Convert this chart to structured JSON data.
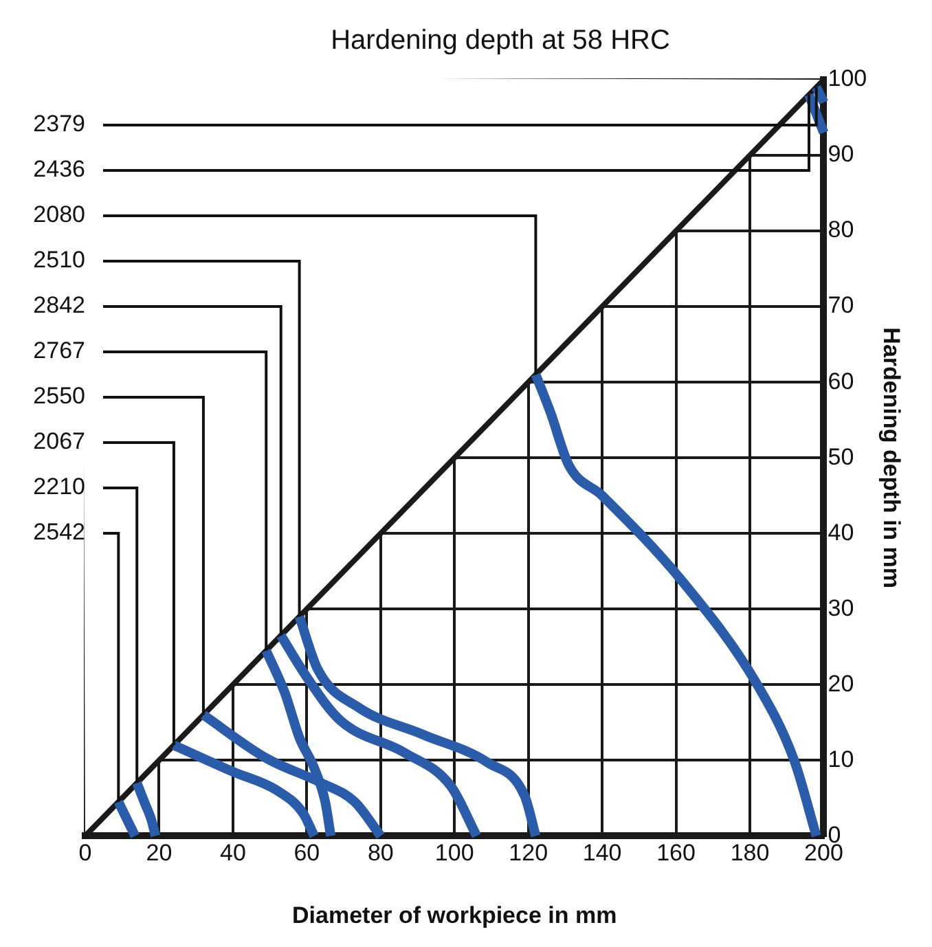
{
  "chart_data": {
    "type": "line",
    "title": "Hardening depth at 58 HRC",
    "xlabel": "Diameter of workpiece in mm",
    "ylabel": "Hardening depth in mm",
    "xlim": [
      0,
      200
    ],
    "xticks": [
      0,
      20,
      40,
      60,
      80,
      100,
      120,
      140,
      160,
      180,
      200
    ],
    "ylim": [
      0,
      100
    ],
    "yticks": [
      0,
      10,
      20,
      30,
      40,
      50,
      60,
      70,
      80,
      90,
      100
    ],
    "grid": true,
    "marker": "none",
    "series": [
      {
        "type": "line",
        "color": "#1a1a1a",
        "x": [
          0,
          200
        ],
        "values": [
          0,
          100
        ]
      },
      {
        "name": "2379",
        "color": "#2a5caa",
        "x": [
          198,
          200
        ],
        "values": [
          99,
          97
        ]
      },
      {
        "name": "2436",
        "color": "#2a5caa",
        "x": [
          196,
          200
        ],
        "values": [
          98,
          93
        ]
      },
      {
        "name": "2080",
        "color": "#2a5caa",
        "x": [
          122,
          126,
          131,
          140,
          162,
          182,
          192,
          198
        ],
        "values": [
          61,
          56,
          49,
          45,
          33.5,
          20,
          10,
          0
        ]
      },
      {
        "name": "2510",
        "color": "#2a5caa",
        "x": [
          58,
          63,
          74,
          91.5,
          109,
          119,
          122
        ],
        "values": [
          29,
          22,
          17,
          13.4,
          9.7,
          5.3,
          0
        ]
      },
      {
        "name": "2842",
        "color": "#2a5caa",
        "x": [
          53,
          60,
          69,
          86.5,
          99,
          106
        ],
        "values": [
          26.5,
          21,
          15.3,
          11,
          6.6,
          0
        ]
      },
      {
        "name": "2767",
        "color": "#2a5caa",
        "x": [
          49,
          54,
          58,
          62,
          65,
          66.5
        ],
        "values": [
          24.5,
          19,
          13,
          9,
          4.5,
          0
        ]
      },
      {
        "name": "2550",
        "color": "#2a5caa",
        "x": [
          32,
          49,
          64,
          73,
          80
        ],
        "values": [
          16,
          10.3,
          7,
          4.5,
          0
        ]
      },
      {
        "name": "2067",
        "color": "#2a5caa",
        "x": [
          24,
          40,
          52,
          59,
          62
        ],
        "values": [
          12,
          8.5,
          6,
          3,
          0
        ]
      },
      {
        "name": "2210",
        "color": "#2a5caa",
        "x": [
          14,
          16,
          18,
          19
        ],
        "values": [
          7,
          4.5,
          2,
          0
        ]
      },
      {
        "name": "2542",
        "color": "#2a5caa",
        "x": [
          9,
          11,
          13.5
        ],
        "values": [
          4.5,
          2.5,
          0
        ]
      }
    ]
  }
}
